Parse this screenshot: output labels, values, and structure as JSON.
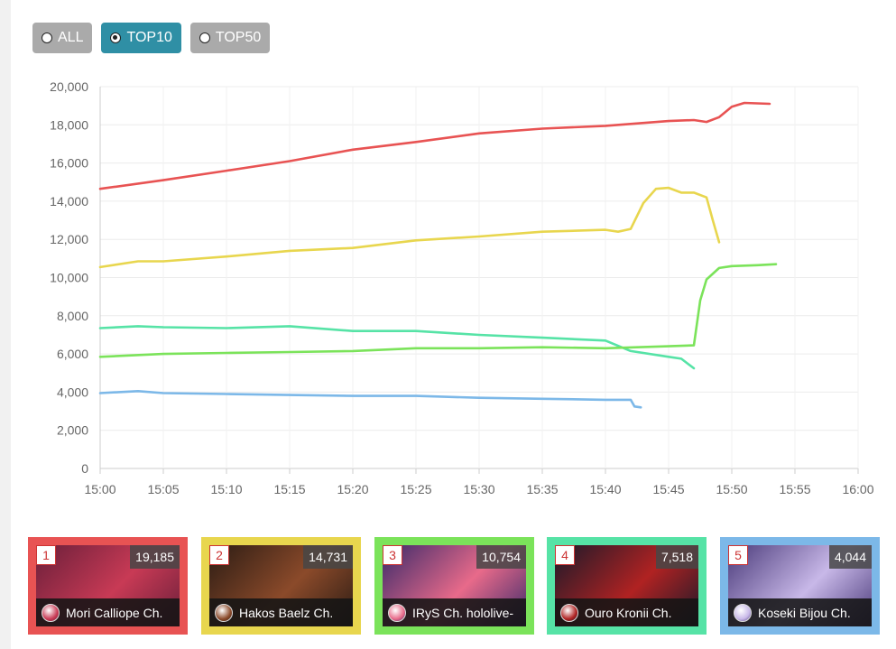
{
  "filters": [
    {
      "label": "ALL",
      "selected": false
    },
    {
      "label": "TOP10",
      "selected": true
    },
    {
      "label": "TOP50",
      "selected": false
    }
  ],
  "chart_data": {
    "type": "line",
    "title": "",
    "xlabel": "",
    "ylabel": "",
    "xlim": [
      "15:00",
      "16:00"
    ],
    "ylim": [
      0,
      20000
    ],
    "x_ticks": [
      "15:00",
      "15:05",
      "15:10",
      "15:15",
      "15:20",
      "15:25",
      "15:30",
      "15:35",
      "15:40",
      "15:45",
      "15:50",
      "15:55",
      "16:00"
    ],
    "y_ticks": [
      "0",
      "2,000",
      "4,000",
      "6,000",
      "8,000",
      "10,000",
      "12,000",
      "14,000",
      "16,000",
      "18,000",
      "20,000"
    ],
    "grid": true,
    "legend": "none",
    "series": [
      {
        "color": "#e85353",
        "points": [
          [
            "15:00",
            14650
          ],
          [
            "15:05",
            15100
          ],
          [
            "15:10",
            15600
          ],
          [
            "15:15",
            16100
          ],
          [
            "15:20",
            16700
          ],
          [
            "15:25",
            17100
          ],
          [
            "15:30",
            17550
          ],
          [
            "15:35",
            17800
          ],
          [
            "15:40",
            17950
          ],
          [
            "15:45",
            18200
          ],
          [
            "15:47",
            18250
          ],
          [
            "15:48",
            18150
          ],
          [
            "15:49",
            18400
          ],
          [
            "15:50",
            18950
          ],
          [
            "15:51",
            19150
          ],
          [
            "15:53",
            19100
          ]
        ]
      },
      {
        "color": "#e8d64e",
        "points": [
          [
            "15:00",
            10550
          ],
          [
            "15:03",
            10850
          ],
          [
            "15:05",
            10850
          ],
          [
            "15:10",
            11100
          ],
          [
            "15:15",
            11400
          ],
          [
            "15:20",
            11550
          ],
          [
            "15:25",
            11950
          ],
          [
            "15:30",
            12150
          ],
          [
            "15:35",
            12400
          ],
          [
            "15:40",
            12500
          ],
          [
            "15:41",
            12400
          ],
          [
            "15:42",
            12550
          ],
          [
            "15:43",
            13900
          ],
          [
            "15:44",
            14650
          ],
          [
            "15:45",
            14700
          ],
          [
            "15:46",
            14450
          ],
          [
            "15:47",
            14450
          ],
          [
            "15:48",
            14200
          ],
          [
            "15:48.5",
            13000
          ],
          [
            "15:49",
            11850
          ]
        ]
      },
      {
        "color": "#56e3a6",
        "points": [
          [
            "15:00",
            7350
          ],
          [
            "15:03",
            7450
          ],
          [
            "15:05",
            7400
          ],
          [
            "15:10",
            7350
          ],
          [
            "15:15",
            7450
          ],
          [
            "15:20",
            7200
          ],
          [
            "15:25",
            7200
          ],
          [
            "15:30",
            7000
          ],
          [
            "15:35",
            6850
          ],
          [
            "15:40",
            6700
          ],
          [
            "15:42",
            6150
          ],
          [
            "15:45",
            5850
          ],
          [
            "15:46",
            5750
          ],
          [
            "15:47",
            5250
          ]
        ]
      },
      {
        "color": "#7be35a",
        "points": [
          [
            "15:00",
            5850
          ],
          [
            "15:05",
            6000
          ],
          [
            "15:10",
            6050
          ],
          [
            "15:15",
            6100
          ],
          [
            "15:20",
            6150
          ],
          [
            "15:25",
            6300
          ],
          [
            "15:30",
            6300
          ],
          [
            "15:35",
            6350
          ],
          [
            "15:40",
            6300
          ],
          [
            "15:45",
            6400
          ],
          [
            "15:47",
            6450
          ],
          [
            "15:47.5",
            8800
          ],
          [
            "15:48",
            9900
          ],
          [
            "15:49",
            10500
          ],
          [
            "15:50",
            10600
          ],
          [
            "15:52",
            10650
          ],
          [
            "15:53.5",
            10700
          ]
        ]
      },
      {
        "color": "#7cb8e8",
        "points": [
          [
            "15:00",
            3950
          ],
          [
            "15:03",
            4050
          ],
          [
            "15:05",
            3950
          ],
          [
            "15:10",
            3900
          ],
          [
            "15:15",
            3850
          ],
          [
            "15:20",
            3800
          ],
          [
            "15:25",
            3800
          ],
          [
            "15:30",
            3700
          ],
          [
            "15:35",
            3650
          ],
          [
            "15:40",
            3600
          ],
          [
            "15:42",
            3600
          ],
          [
            "15:42.3",
            3250
          ],
          [
            "15:42.8",
            3200
          ]
        ]
      }
    ]
  },
  "cards": [
    {
      "rank": "1",
      "viewers": "19,185",
      "name": "Mori Calliope Ch.",
      "color": "#e85353",
      "thumb_a": "#6a1f3a",
      "thumb_b": "#c83a55"
    },
    {
      "rank": "2",
      "viewers": "14,731",
      "name": "Hakos Baelz Ch.",
      "color": "#e8d64e",
      "thumb_a": "#2b1c14",
      "thumb_b": "#8b4a2a"
    },
    {
      "rank": "3",
      "viewers": "10,754",
      "name": "IRyS Ch. hololive-",
      "color": "#7be35a",
      "thumb_a": "#3a2a6a",
      "thumb_b": "#e86a8a"
    },
    {
      "rank": "4",
      "viewers": "7,518",
      "name": "Ouro Kronii Ch.",
      "color": "#56e3a6",
      "thumb_a": "#1a1a2a",
      "thumb_b": "#b02222"
    },
    {
      "rank": "5",
      "viewers": "4,044",
      "name": "Koseki Bijou Ch.",
      "color": "#7cb8e8",
      "thumb_a": "#4a3a7a",
      "thumb_b": "#c8b8e8"
    }
  ]
}
